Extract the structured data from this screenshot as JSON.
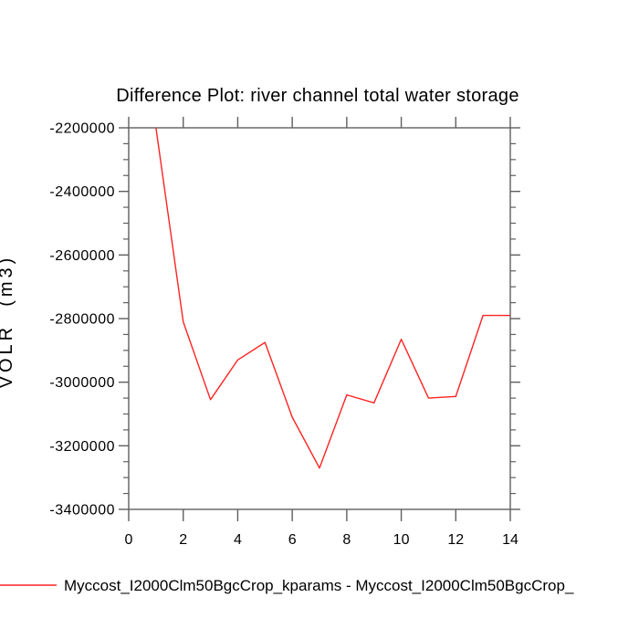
{
  "window": {
    "background": "#ffffff"
  },
  "chart_data": {
    "type": "line",
    "title": "Difference Plot: river channel total water storage",
    "xlabel": "",
    "ylabel": "VOLR  (m3)",
    "x": [
      1,
      2,
      3,
      4,
      5,
      6,
      7,
      8,
      9,
      10,
      11,
      12,
      13,
      14
    ],
    "series": [
      {
        "name": "Myccost_I2000Clm50BgcCrop_kparams - Myccost_I2000Clm50BgcCrop_",
        "color": "#ff2323",
        "values": [
          -2200000,
          -2810000,
          -3055000,
          -2930000,
          -2875000,
          -3110000,
          -3270000,
          -3040000,
          -3065000,
          -2865000,
          -3050000,
          -3045000,
          -2790000,
          -2790000
        ]
      }
    ],
    "xlim": [
      0,
      14
    ],
    "ylim": [
      -3400000,
      -2200000
    ],
    "x_ticks": [
      0,
      2,
      4,
      6,
      8,
      10,
      12,
      14
    ],
    "y_ticks": [
      -2200000,
      -2400000,
      -2600000,
      -2800000,
      -3000000,
      -3200000,
      -3400000
    ],
    "y_major_step": 200000,
    "y_minor_tick_step": 50000,
    "grid": false,
    "legend_position": "bottom-left"
  },
  "legend": {
    "swatch_color": "#ff2323",
    "label": "Myccost_I2000Clm50BgcCrop_kparams - Myccost_I2000Clm50BgcCrop_"
  },
  "axis": {
    "color": "#5f5f5f",
    "text_color": "#000000"
  }
}
